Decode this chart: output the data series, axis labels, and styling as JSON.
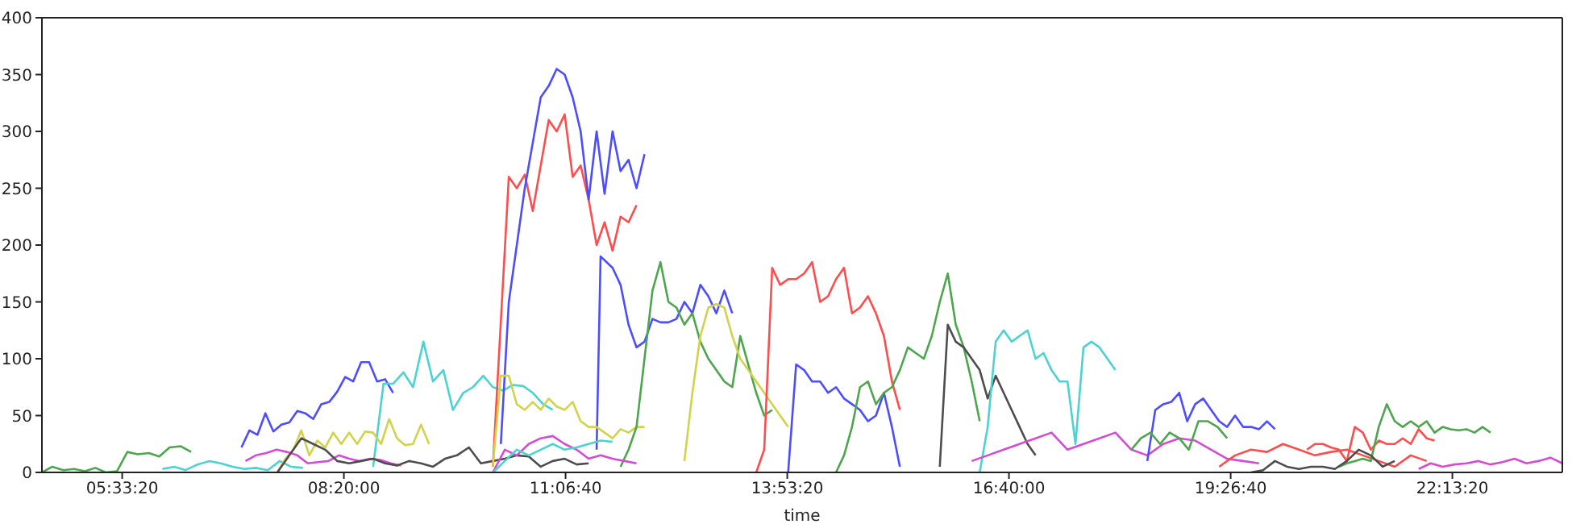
{
  "chart_data": {
    "type": "line",
    "xlabel": "time",
    "xlim": [
      4.55,
      23.6
    ],
    "ylim": [
      0,
      400
    ],
    "yticks": [
      0,
      50,
      100,
      150,
      200,
      250,
      300,
      350,
      400
    ],
    "xticks": [
      {
        "value": 5.555556,
        "label": "05:33:20"
      },
      {
        "value": 8.333333,
        "label": "08:20:00"
      },
      {
        "value": 11.111111,
        "label": "11:06:40"
      },
      {
        "value": 13.888889,
        "label": "13:53:20"
      },
      {
        "value": 16.666667,
        "label": "16:40:00"
      },
      {
        "value": 19.444444,
        "label": "19:26:40"
      },
      {
        "value": 22.222222,
        "label": "22:13:20"
      }
    ],
    "series": [
      {
        "color": "#4da64d",
        "x": [
          4.55,
          4.68,
          4.82,
          4.95,
          5.09,
          5.22,
          5.35,
          5.49,
          5.62,
          5.75,
          5.89,
          6.02,
          6.15,
          6.29,
          6.42
        ],
        "values": [
          0,
          5,
          2,
          3,
          1,
          4,
          0,
          1,
          18,
          16,
          17,
          14,
          22,
          23,
          18
        ]
      },
      {
        "color": "#4dd2d2",
        "x": [
          6.06,
          6.21,
          6.35,
          6.5,
          6.65,
          6.79,
          6.94,
          7.09,
          7.23,
          7.38,
          7.53,
          7.67,
          7.82
        ],
        "values": [
          3,
          5,
          2,
          7,
          10,
          8,
          5,
          3,
          4,
          2,
          10,
          5,
          4
        ]
      },
      {
        "color": "#4d4dff",
        "x": [
          7.05,
          7.15,
          7.25,
          7.35,
          7.45,
          7.55,
          7.65,
          7.75,
          7.85,
          7.95,
          8.05,
          8.15,
          8.25,
          8.35,
          8.45,
          8.55,
          8.65,
          8.75,
          8.85,
          8.95
        ],
        "values": [
          22,
          37,
          33,
          52,
          36,
          42,
          44,
          54,
          52,
          47,
          60,
          62,
          71,
          84,
          80,
          97,
          97,
          80,
          82,
          70
        ]
      },
      {
        "color": "#4dd2d2",
        "x": [
          8.7,
          8.83,
          8.95,
          9.08,
          9.2,
          9.33,
          9.45,
          9.58,
          9.7,
          9.83,
          9.95,
          10.08,
          10.2,
          10.33,
          10.45,
          10.58,
          10.7,
          10.83,
          10.95
        ],
        "values": [
          5,
          78,
          78,
          88,
          75,
          115,
          80,
          90,
          55,
          70,
          75,
          85,
          75,
          72,
          77,
          76,
          70,
          60,
          55
        ]
      },
      {
        "color": "#d2d24d",
        "x": [
          7.5,
          7.6,
          7.7,
          7.8,
          7.9,
          8.0,
          8.1,
          8.2,
          8.3,
          8.4,
          8.5,
          8.6,
          8.7,
          8.8,
          8.9,
          9.0,
          9.1,
          9.2,
          9.3,
          9.4
        ],
        "values": [
          0,
          12,
          20,
          37,
          15,
          28,
          22,
          35,
          25,
          35,
          25,
          36,
          35,
          25,
          47,
          30,
          24,
          25,
          42,
          25
        ]
      },
      {
        "color": "#d24dd2",
        "x": [
          7.1,
          7.23,
          7.36,
          7.49,
          7.62,
          7.75,
          7.88,
          8.01,
          8.14,
          8.27,
          8.4,
          8.53,
          8.66,
          8.79,
          8.92,
          9.05
        ],
        "values": [
          10,
          15,
          17,
          20,
          18,
          15,
          8,
          9,
          10,
          15,
          12,
          10,
          12,
          11,
          8,
          6
        ]
      },
      {
        "color": "#4d4d4d",
        "x": [
          7.5,
          7.65,
          7.8,
          7.95,
          8.1,
          8.25,
          8.4,
          8.55,
          8.7,
          8.85,
          9.0,
          9.15,
          9.3,
          9.45,
          9.6,
          9.75,
          9.9,
          10.05,
          10.2,
          10.35,
          10.5,
          10.65,
          10.8,
          10.95,
          11.1,
          11.25,
          11.4
        ],
        "values": [
          0,
          15,
          30,
          25,
          20,
          10,
          8,
          10,
          12,
          8,
          6,
          10,
          8,
          5,
          12,
          15,
          22,
          8,
          10,
          12,
          15,
          14,
          5,
          10,
          12,
          7,
          8
        ]
      },
      {
        "color": "#ff4d4d",
        "x": [
          10.2,
          10.4,
          10.5,
          10.6,
          10.7,
          10.8,
          10.9,
          11.0,
          11.1,
          11.2,
          11.3,
          11.4,
          11.5,
          11.6,
          11.7,
          11.8,
          11.9,
          12.0
        ],
        "values": [
          5,
          260,
          250,
          262,
          230,
          270,
          310,
          300,
          315,
          260,
          270,
          240,
          200,
          220,
          195,
          225,
          220,
          235
        ]
      },
      {
        "color": "#4d4dff",
        "x": [
          10.3,
          10.4,
          10.5,
          10.6,
          10.7,
          10.8,
          10.9,
          11.0,
          11.1,
          11.2,
          11.3,
          11.4,
          11.5,
          11.6,
          11.7,
          11.8,
          11.9,
          12.0,
          12.1
        ],
        "values": [
          25,
          150,
          200,
          250,
          290,
          330,
          340,
          355,
          350,
          330,
          300,
          240,
          300,
          245,
          300,
          265,
          275,
          250,
          280
        ]
      },
      {
        "color": "#4d4dff",
        "x": [
          11.5,
          11.55,
          11.7,
          11.8,
          11.9,
          12.0,
          12.1,
          12.2,
          12.3,
          12.4,
          12.5,
          12.6,
          12.7,
          12.8,
          12.9,
          13.0,
          13.1,
          13.2
        ],
        "values": [
          20,
          190,
          180,
          165,
          130,
          110,
          115,
          135,
          132,
          132,
          135,
          150,
          140,
          165,
          155,
          140,
          160,
          140
        ]
      },
      {
        "color": "#d2d24d",
        "x": [
          10.2,
          10.3,
          10.4,
          10.5,
          10.6,
          10.7,
          10.8,
          10.9,
          11.0,
          11.1,
          11.2,
          11.3,
          11.4,
          11.5,
          11.6,
          11.7,
          11.8,
          11.9,
          12.0,
          12.1
        ],
        "values": [
          5,
          85,
          85,
          60,
          55,
          62,
          55,
          65,
          58,
          55,
          62,
          45,
          40,
          40,
          35,
          30,
          38,
          35,
          40,
          40
        ]
      },
      {
        "color": "#4da64d",
        "x": [
          11.8,
          11.9,
          12.0,
          12.1,
          12.2,
          12.3,
          12.4,
          12.5,
          12.6,
          12.7,
          12.8,
          12.9,
          13.0,
          13.1,
          13.2,
          13.3,
          13.4,
          13.5,
          13.6,
          13.7
        ],
        "values": [
          5,
          20,
          40,
          100,
          160,
          185,
          150,
          145,
          130,
          140,
          115,
          100,
          90,
          80,
          75,
          120,
          95,
          70,
          50,
          55
        ]
      },
      {
        "color": "#d2d24d",
        "x": [
          12.6,
          12.7,
          12.8,
          12.9,
          13.0,
          13.1,
          13.2,
          13.3,
          13.4,
          13.5,
          13.6,
          13.7,
          13.8,
          13.9
        ],
        "values": [
          10,
          70,
          120,
          145,
          148,
          145,
          120,
          100,
          90,
          80,
          70,
          60,
          50,
          40
        ]
      },
      {
        "color": "#ff4d4d",
        "x": [
          13.5,
          13.6,
          13.7,
          13.8,
          13.9,
          14.0,
          14.1,
          14.2,
          14.3,
          14.4,
          14.5,
          14.6,
          14.7,
          14.8,
          14.9,
          15.0,
          15.1,
          15.2,
          15.3
        ],
        "values": [
          0,
          20,
          180,
          165,
          170,
          170,
          175,
          185,
          150,
          155,
          170,
          180,
          140,
          145,
          155,
          140,
          120,
          80,
          55
        ]
      },
      {
        "color": "#4d4dff",
        "x": [
          13.9,
          14.0,
          14.1,
          14.2,
          14.3,
          14.4,
          14.5,
          14.6,
          14.7,
          14.8,
          14.9,
          15.0,
          15.1,
          15.2,
          15.3
        ],
        "values": [
          0,
          95,
          90,
          80,
          80,
          70,
          75,
          65,
          60,
          55,
          45,
          50,
          70,
          40,
          5
        ]
      },
      {
        "color": "#4da64d",
        "x": [
          14.5,
          14.6,
          14.7,
          14.8,
          14.9,
          15.0,
          15.1,
          15.2,
          15.3,
          15.4,
          15.5,
          15.6,
          15.7,
          15.8,
          15.9,
          16.0,
          16.1,
          16.2,
          16.3
        ],
        "values": [
          0,
          15,
          40,
          75,
          80,
          60,
          70,
          75,
          90,
          110,
          105,
          100,
          120,
          150,
          175,
          130,
          110,
          80,
          45
        ]
      },
      {
        "color": "#4d4d4d",
        "x": [
          15.8,
          15.9,
          16.0,
          16.1,
          16.2,
          16.3,
          16.4,
          16.5,
          16.6,
          16.7,
          16.8,
          16.9,
          17.0
        ],
        "values": [
          5,
          130,
          115,
          110,
          100,
          90,
          65,
          85,
          70,
          55,
          40,
          25,
          15
        ]
      },
      {
        "color": "#4dd2d2",
        "x": [
          16.3,
          16.4,
          16.5,
          16.6,
          16.7,
          16.8,
          16.9,
          17.0,
          17.1,
          17.2,
          17.3,
          17.4,
          17.5,
          17.6,
          17.7,
          17.8,
          17.9,
          18.0
        ],
        "values": [
          0,
          40,
          115,
          125,
          115,
          120,
          125,
          100,
          105,
          90,
          80,
          80,
          25,
          110,
          115,
          110,
          100,
          90
        ]
      },
      {
        "color": "#d24dd2",
        "x": [
          16.2,
          16.4,
          16.6,
          16.8,
          17.0,
          17.2,
          17.4,
          17.6,
          17.8,
          18.0,
          18.2,
          18.4,
          18.6,
          18.8,
          19.0,
          19.2,
          19.4,
          19.6,
          19.8
        ],
        "values": [
          10,
          15,
          20,
          25,
          30,
          35,
          20,
          25,
          30,
          35,
          20,
          15,
          25,
          30,
          28,
          20,
          12,
          10,
          8
        ]
      },
      {
        "color": "#4d4dff",
        "x": [
          18.4,
          18.5,
          18.6,
          18.7,
          18.8,
          18.9,
          19.0,
          19.1,
          19.2,
          19.3,
          19.4,
          19.5,
          19.6,
          19.7,
          19.8,
          19.9,
          20.0
        ],
        "values": [
          10,
          55,
          60,
          62,
          70,
          45,
          60,
          65,
          55,
          45,
          40,
          50,
          40,
          40,
          38,
          45,
          38
        ]
      },
      {
        "color": "#4da64d",
        "x": [
          18.2,
          18.32,
          18.44,
          18.56,
          18.68,
          18.8,
          18.92,
          19.04,
          19.16,
          19.28,
          19.4
        ],
        "values": [
          20,
          30,
          35,
          25,
          35,
          30,
          20,
          45,
          45,
          40,
          30
        ]
      },
      {
        "color": "#ff4d4d",
        "x": [
          19.3,
          19.5,
          19.7,
          19.9,
          20.1,
          20.3,
          20.5,
          20.7,
          20.9,
          21.1,
          21.3,
          21.5,
          21.7,
          21.9
        ],
        "values": [
          5,
          15,
          20,
          18,
          25,
          20,
          15,
          18,
          20,
          15,
          10,
          5,
          15,
          10
        ]
      },
      {
        "color": "#ff4d4d",
        "x": [
          20.4,
          20.5,
          20.6,
          20.7,
          20.8,
          20.9,
          21.0,
          21.1,
          21.2,
          21.3,
          21.4,
          21.5,
          21.6,
          21.7,
          21.8,
          21.9,
          22.0
        ],
        "values": [
          20,
          25,
          25,
          22,
          20,
          10,
          40,
          35,
          20,
          28,
          25,
          25,
          30,
          25,
          38,
          30,
          28
        ]
      },
      {
        "color": "#4da64d",
        "x": [
          20.8,
          20.9,
          21.0,
          21.1,
          21.2,
          21.3,
          21.4,
          21.5,
          21.6,
          21.7,
          21.8,
          21.9,
          22.0,
          22.1,
          22.2,
          22.3,
          22.4,
          22.5,
          22.6,
          22.7
        ],
        "values": [
          5,
          8,
          10,
          12,
          10,
          40,
          60,
          45,
          40,
          45,
          40,
          45,
          35,
          40,
          38,
          37,
          38,
          35,
          40,
          35
        ]
      },
      {
        "color": "#4d4d4d",
        "x": [
          19.7,
          19.85,
          20.0,
          20.15,
          20.3,
          20.45,
          20.6,
          20.75,
          20.9,
          21.05,
          21.2,
          21.35,
          21.5
        ],
        "values": [
          0,
          2,
          10,
          5,
          3,
          5,
          5,
          3,
          10,
          20,
          15,
          5,
          10
        ]
      },
      {
        "color": "#d24dd2",
        "x": [
          21.8,
          21.95,
          22.1,
          22.25,
          22.4,
          22.55,
          22.7,
          22.85,
          23.0,
          23.15,
          23.3,
          23.45,
          23.6
        ],
        "values": [
          3,
          8,
          5,
          7,
          8,
          10,
          7,
          9,
          12,
          8,
          10,
          13,
          8
        ]
      },
      {
        "color": "#d24dd2",
        "x": [
          10.2,
          10.35,
          10.5,
          10.65,
          10.8,
          10.95,
          11.1,
          11.25,
          11.4,
          11.55,
          11.7,
          11.85,
          12.0
        ],
        "values": [
          0,
          20,
          15,
          25,
          30,
          32,
          25,
          20,
          12,
          15,
          12,
          10,
          8
        ]
      },
      {
        "color": "#4dd2d2",
        "x": [
          10.2,
          10.35,
          10.5,
          10.65,
          10.8,
          10.95,
          11.1,
          11.25,
          11.4,
          11.55,
          11.7
        ],
        "values": [
          0,
          10,
          20,
          15,
          20,
          25,
          20,
          22,
          25,
          28,
          27
        ]
      }
    ]
  }
}
